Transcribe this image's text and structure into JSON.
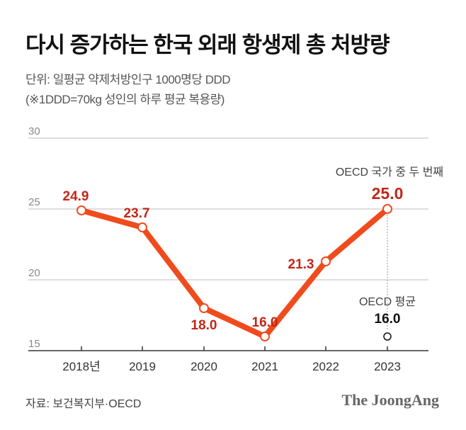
{
  "title": "다시 증가하는 한국 외래 항생제 총 처방량",
  "unit": "단위: 일평균 약제처방인구 1000명당 DDD",
  "note": "(※1DDD=70kg 성인의 하루 평균 복용량)",
  "source": "자료: 보건복지부·OECD",
  "logo": "The JoongAng",
  "chart_data": {
    "type": "line",
    "categories": [
      "2018년",
      "2019",
      "2020",
      "2021",
      "2022",
      "2023"
    ],
    "series": [
      {
        "values": [
          24.9,
          23.7,
          18.0,
          16.0,
          21.3,
          25.0
        ],
        "labels": [
          "24.9",
          "23.7",
          "18.0",
          "16.0",
          "21.3",
          "25.0"
        ],
        "color": "#f04b1c"
      }
    ],
    "oecd_average": {
      "label": "OECD 평균",
      "value": 16.0,
      "value_label": "16.0",
      "category": "2023"
    },
    "annotation": "OECD 국가 중 두 번째",
    "ylim": [
      15,
      30
    ],
    "yticks": [
      15,
      20,
      25,
      30
    ],
    "ytick_labels": [
      "15",
      "20",
      "25",
      "30"
    ],
    "grid": true,
    "label_color": "#c22619"
  }
}
